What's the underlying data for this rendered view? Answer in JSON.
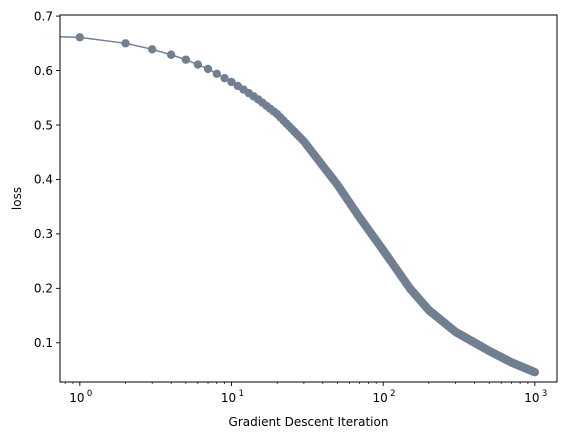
{
  "chart_data": {
    "type": "line",
    "title": "",
    "xlabel": "Gradient Descent Iteration",
    "ylabel": "loss",
    "xscale": "log",
    "xlim": [
      0.74,
      1400
    ],
    "ylim": [
      0.028,
      0.702
    ],
    "grid": false,
    "legend": "none",
    "x_ticks": [
      {
        "value": 1,
        "base": "10",
        "exp": "0"
      },
      {
        "value": 10,
        "base": "10",
        "exp": "1"
      },
      {
        "value": 100,
        "base": "10",
        "exp": "2"
      },
      {
        "value": 1000,
        "base": "10",
        "exp": "3"
      }
    ],
    "y_ticks": [
      {
        "value": 0.1,
        "label": "0.1"
      },
      {
        "value": 0.2,
        "label": "0.2"
      },
      {
        "value": 0.3,
        "label": "0.3"
      },
      {
        "value": 0.4,
        "label": "0.4"
      },
      {
        "value": 0.5,
        "label": "0.5"
      },
      {
        "value": 0.6,
        "label": "0.6"
      },
      {
        "value": 0.7,
        "label": "0.7"
      }
    ],
    "series": [
      {
        "color": "#708090",
        "marker": "circle",
        "x": [
          0,
          1,
          2,
          3,
          4,
          5,
          6,
          7,
          8,
          9,
          10,
          12,
          15,
          20,
          30,
          50,
          70,
          100,
          150,
          200,
          300,
          500,
          700,
          1000
        ],
        "y": [
          0.662,
          0.661,
          0.65,
          0.639,
          0.629,
          0.62,
          0.611,
          0.603,
          0.594,
          0.586,
          0.579,
          0.565,
          0.547,
          0.52,
          0.47,
          0.39,
          0.33,
          0.27,
          0.2,
          0.16,
          0.12,
          0.085,
          0.064,
          0.046
        ]
      }
    ]
  }
}
